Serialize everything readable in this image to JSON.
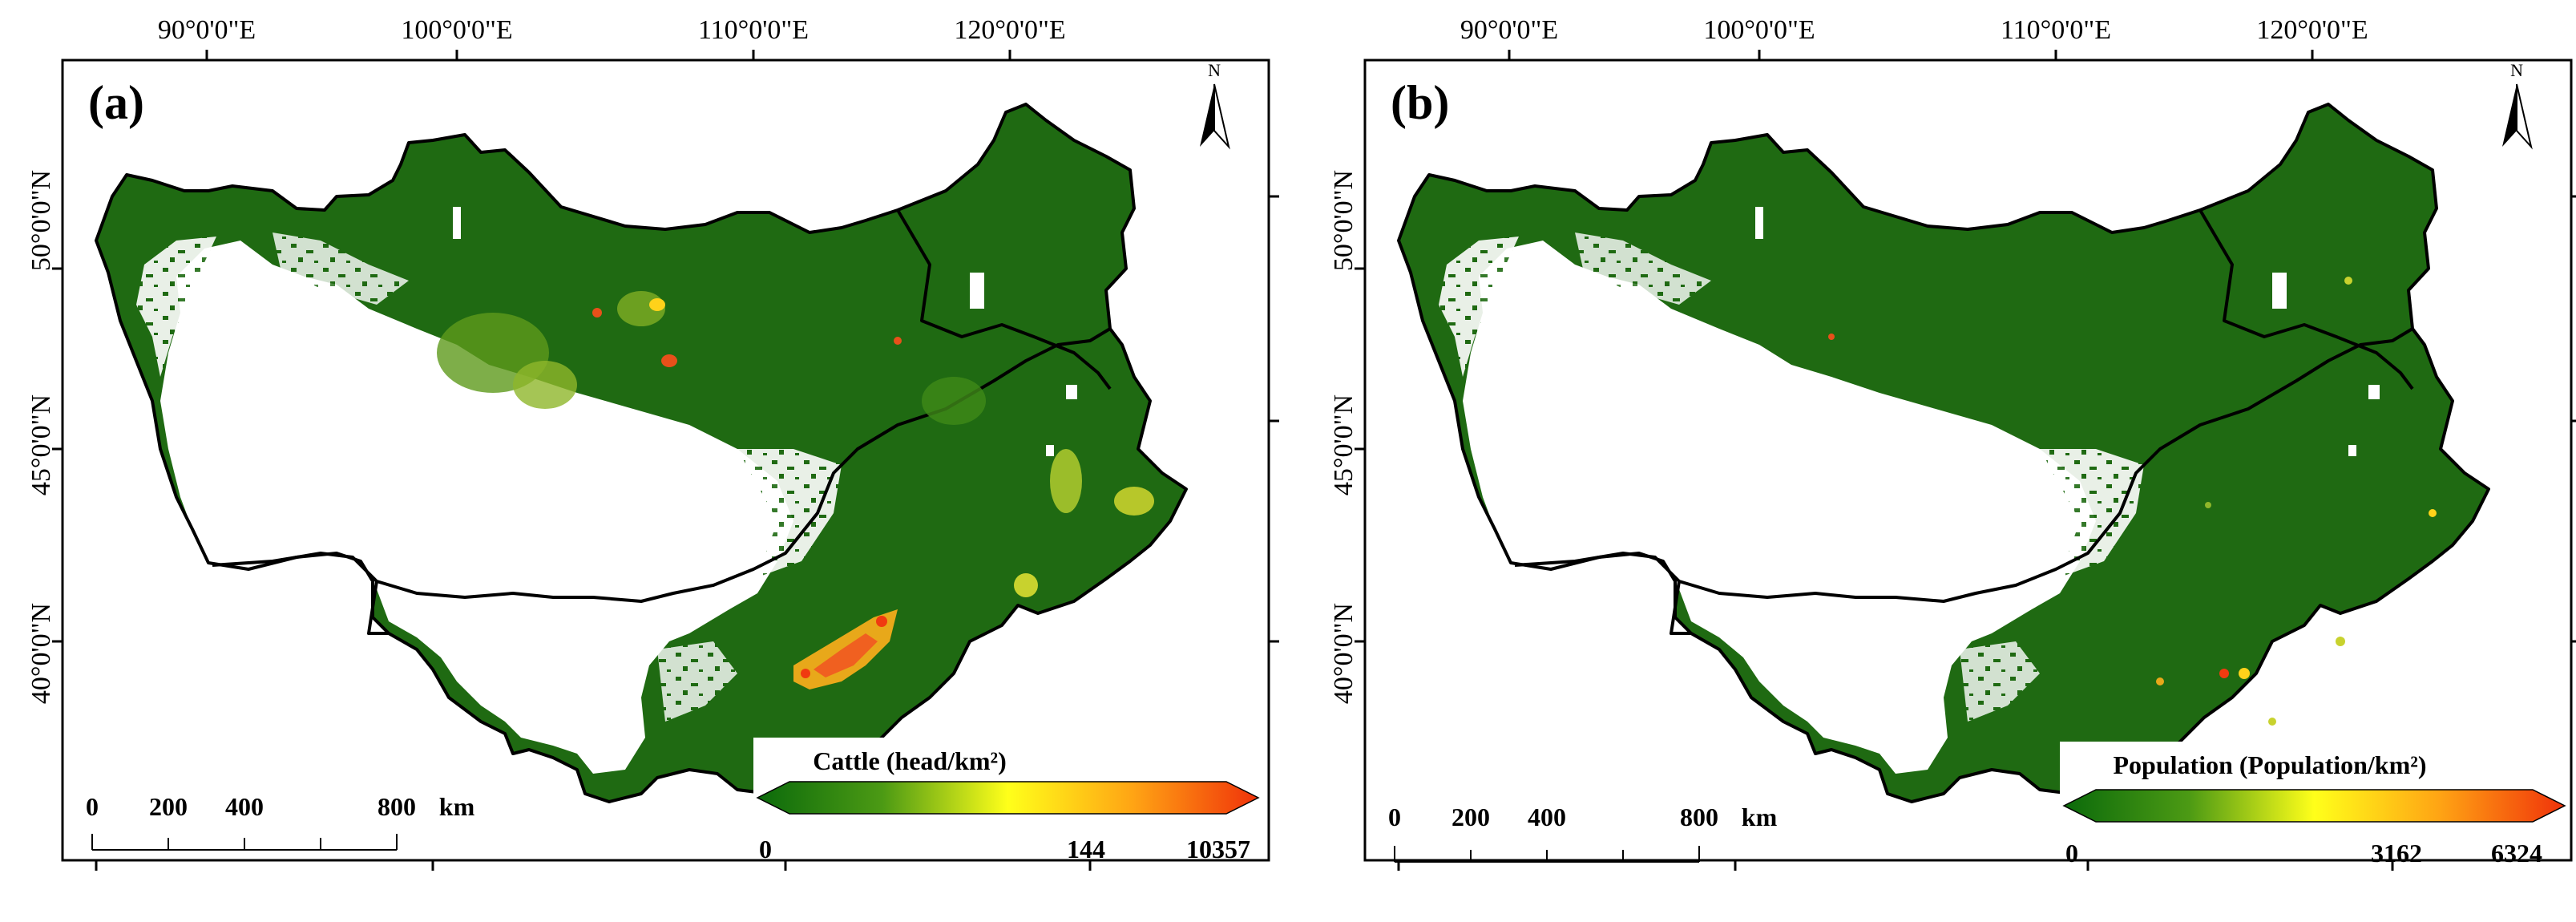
{
  "panels": [
    {
      "label": "(a)",
      "legend": {
        "title": "Cattle (head/km²)",
        "min": "0",
        "mid": "144",
        "max": "10357"
      },
      "top_ticks": [
        "90°0'0\"E",
        "100°0'0\"E",
        "110°0'0\"E",
        "120°0'0\"E"
      ],
      "left_ticks": [
        "50°0'0\"N",
        "45°0'0\"N",
        "40°0'0\"N"
      ],
      "scale": {
        "labels": [
          "0",
          "200",
          "400",
          "800"
        ],
        "unit": "km"
      },
      "north": "N"
    },
    {
      "label": "(b)",
      "legend": {
        "title": "Population (Population/km²)",
        "min": "0",
        "mid": "3162",
        "max": "6324"
      },
      "top_ticks": [
        "90°0'0\"E",
        "100°0'0\"E",
        "110°0'0\"E",
        "120°0'0\"E"
      ],
      "left_ticks": [
        "50°0'0\"N",
        "45°0'0\"N",
        "40°0'0\"N"
      ],
      "scale": {
        "labels": [
          "0",
          "200",
          "400",
          "800"
        ],
        "unit": "km"
      },
      "north": "N"
    }
  ],
  "colors": {
    "region_green": "#1f6a12",
    "low_green": "#0b6a0b",
    "mid_yellow": "#ffff1a",
    "high_red": "#f0320a",
    "boundary": "#000000"
  }
}
